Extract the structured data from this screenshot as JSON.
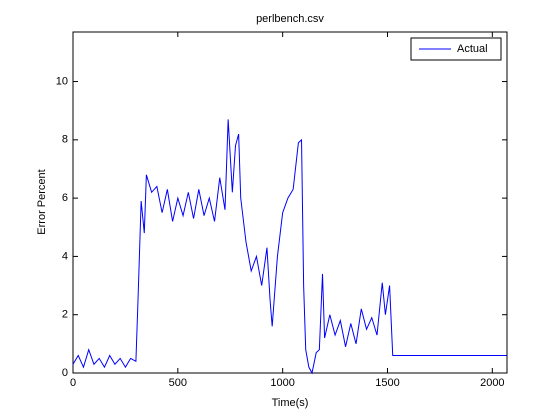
{
  "chart_data": {
    "type": "line",
    "title": "perlbench.csv",
    "x_label": "Time(s)",
    "y_label": "Error Percent",
    "x": [
      0,
      25,
      50,
      75,
      100,
      125,
      150,
      175,
      200,
      225,
      250,
      275,
      300,
      310,
      325,
      340,
      350,
      375,
      400,
      425,
      450,
      475,
      500,
      525,
      550,
      575,
      600,
      625,
      650,
      675,
      700,
      725,
      740,
      760,
      775,
      790,
      800,
      825,
      850,
      875,
      900,
      925,
      940,
      950,
      975,
      1000,
      1025,
      1050,
      1075,
      1090,
      1100,
      1110,
      1125,
      1140,
      1160,
      1175,
      1190,
      1200,
      1225,
      1250,
      1275,
      1300,
      1325,
      1350,
      1375,
      1400,
      1425,
      1450,
      1475,
      1490,
      1510,
      1525,
      1550,
      1600,
      1650,
      1700,
      1800,
      1900,
      2000,
      2070
    ],
    "series": [
      {
        "name": "Actual",
        "color": "#0000ff",
        "values": [
          0.3,
          0.6,
          0.2,
          0.8,
          0.3,
          0.5,
          0.2,
          0.6,
          0.3,
          0.5,
          0.2,
          0.5,
          0.4,
          2.5,
          5.9,
          4.8,
          6.8,
          6.2,
          6.4,
          5.5,
          6.3,
          5.2,
          6.0,
          5.4,
          6.2,
          5.3,
          6.3,
          5.4,
          6.0,
          5.2,
          6.7,
          5.6,
          8.7,
          6.2,
          7.8,
          8.2,
          6.0,
          4.5,
          3.5,
          4.0,
          3.0,
          4.3,
          2.5,
          1.6,
          4.0,
          5.5,
          6.0,
          6.3,
          7.9,
          8.0,
          3.0,
          0.8,
          0.2,
          0.0,
          0.7,
          0.8,
          3.4,
          1.2,
          2.0,
          1.3,
          1.8,
          0.9,
          1.7,
          1.0,
          2.2,
          1.5,
          1.9,
          1.3,
          3.1,
          2.0,
          3.0,
          0.6,
          0.6,
          0.6,
          0.6,
          0.6,
          0.6,
          0.6,
          0.6,
          0.6
        ]
      }
    ],
    "xlim": [
      0,
      2070
    ],
    "ylim": [
      0,
      11.7
    ],
    "xticks": [
      0,
      500,
      1000,
      1500,
      2000
    ],
    "yticks": [
      0,
      2,
      4,
      6,
      8,
      10
    ],
    "grid": false,
    "legend": "upper right"
  }
}
